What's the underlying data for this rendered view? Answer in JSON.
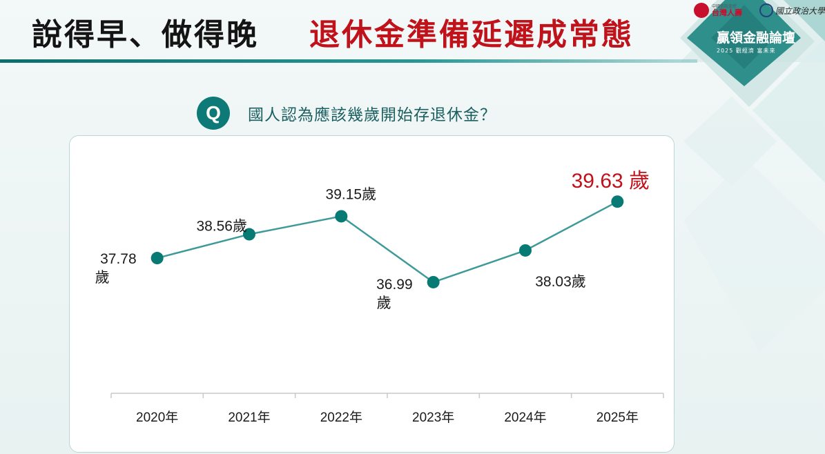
{
  "header": {
    "title_part1": "說得早、做得晚",
    "title_part2": "退休金準備延遲成常態",
    "title_part1_color": "#141414",
    "title_part2_color": "#c0121b"
  },
  "branding": {
    "sponsor_small": "中國信託金控",
    "sponsor_name": "台灣人壽",
    "university_name": "國立政治大學",
    "forum_title": "贏領金融論壇",
    "forum_subtitle": "2025 觀經濟 富未來"
  },
  "question": {
    "icon_letter": "Q",
    "text": "國人認為應該幾歲開始存退休金？"
  },
  "colors": {
    "line": "#3e9a98",
    "marker": "#087a74",
    "highlight": "#c0121b",
    "accent": "#0e7a78"
  },
  "chart_data": {
    "type": "line",
    "categories": [
      "2020年",
      "2021年",
      "2022年",
      "2023年",
      "2024年",
      "2025年"
    ],
    "values": [
      37.78,
      38.56,
      39.15,
      36.99,
      38.03,
      39.63
    ],
    "unit": "歲",
    "data_labels": [
      "37.78\n歲",
      "38.56歲",
      "39.15歲",
      "36.99\n歲",
      "38.03歲",
      "39.63 歲"
    ],
    "highlight_index": 5,
    "ylim": [
      35,
      40.2
    ],
    "grid": false,
    "legend": "none",
    "title": "",
    "xlabel": "",
    "ylabel": ""
  }
}
